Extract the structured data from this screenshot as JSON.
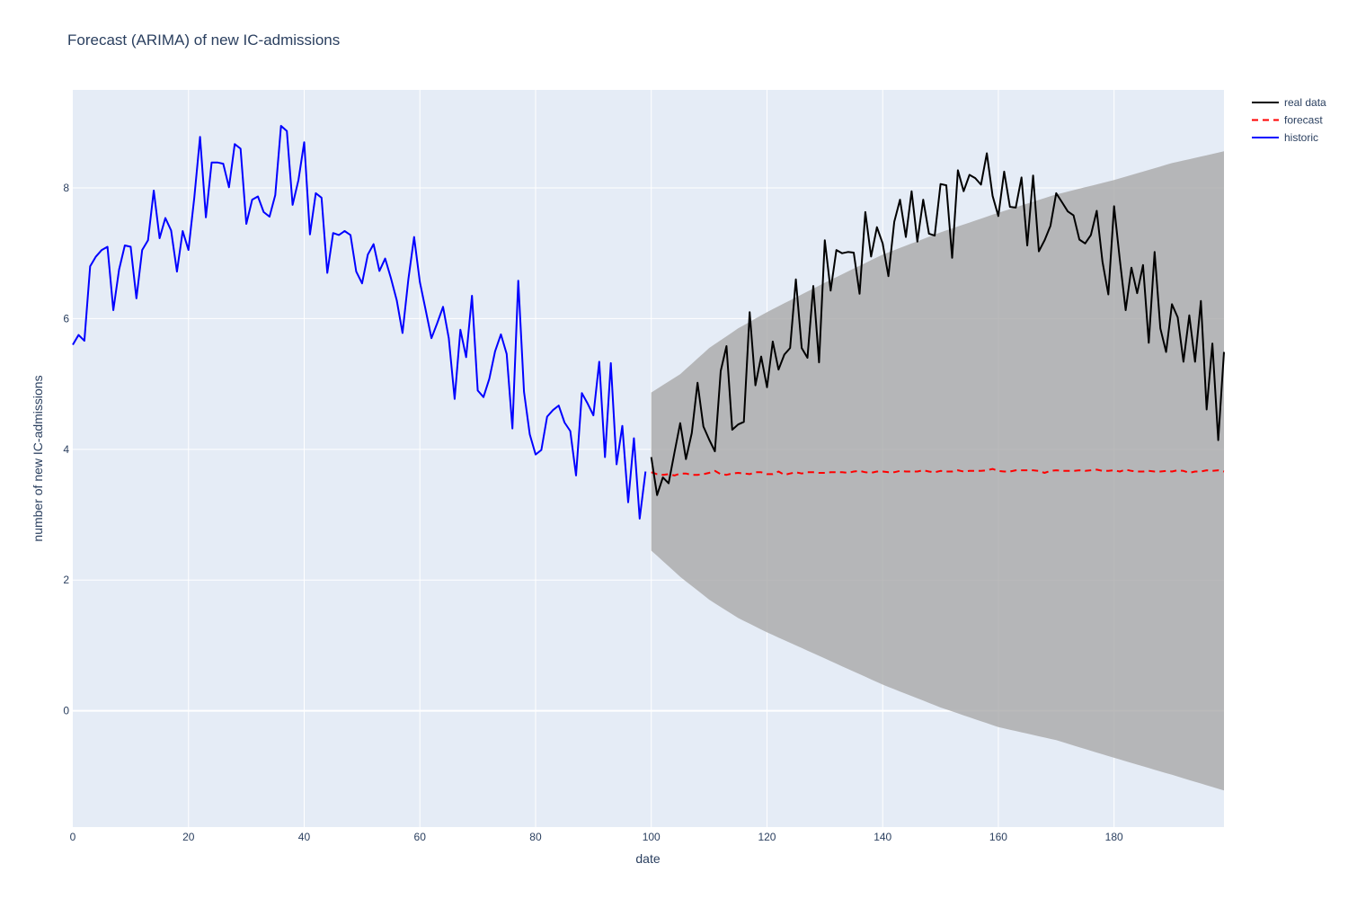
{
  "chart_data": {
    "type": "line",
    "title": "Forecast (ARIMA) of new IC-admissions",
    "xlabel": "date",
    "ylabel": "number of new IC-admissions",
    "xlim": [
      0,
      199
    ],
    "ylim": [
      -1.78,
      9.5
    ],
    "x_ticks": [
      0,
      20,
      40,
      60,
      80,
      100,
      120,
      140,
      160,
      180
    ],
    "y_ticks": [
      0,
      2,
      4,
      6,
      8
    ],
    "grid": true,
    "legend_position": "top-right",
    "colors": {
      "plot_bg": "#e5ecf6",
      "grid": "#ffffff",
      "historic": "#0000ff",
      "real": "#000000",
      "forecast": "#ff0000",
      "band": "#a9a9a9"
    },
    "series": [
      {
        "name": "real data",
        "style": "solid",
        "color": "#000000",
        "x_start": 100,
        "values": [
          3.88,
          3.3,
          3.57,
          3.48,
          3.95,
          4.4,
          3.85,
          4.25,
          5.02,
          4.35,
          4.15,
          3.97,
          5.2,
          5.58,
          4.3,
          4.38,
          4.42,
          6.1,
          4.98,
          5.42,
          4.95,
          5.65,
          5.22,
          5.45,
          5.55,
          6.6,
          5.55,
          5.4,
          6.5,
          5.33,
          7.2,
          6.43,
          7.05,
          7.0,
          7.02,
          7.01,
          6.38,
          7.63,
          6.95,
          7.4,
          7.15,
          6.65,
          7.48,
          7.82,
          7.25,
          7.95,
          7.18,
          7.82,
          7.3,
          7.27,
          8.06,
          8.04,
          6.93,
          8.27,
          7.95,
          8.2,
          8.15,
          8.05,
          8.53,
          7.88,
          7.57,
          8.25,
          7.71,
          7.7,
          8.16,
          7.12,
          8.19,
          7.03,
          7.2,
          7.42,
          7.92,
          7.78,
          7.64,
          7.58,
          7.21,
          7.15,
          7.28,
          7.65,
          6.87,
          6.37,
          7.72,
          6.9,
          6.13,
          6.78,
          6.39,
          6.82,
          5.63,
          7.02,
          5.85,
          5.49,
          6.22,
          6.02,
          5.34,
          6.05,
          5.34,
          6.27,
          4.61,
          5.62,
          4.14,
          5.49
        ]
      },
      {
        "name": "forecast",
        "style": "dashed",
        "color": "#ff0000",
        "x_start": 100,
        "values": [
          3.65,
          3.62,
          3.61,
          3.62,
          3.6,
          3.63,
          3.63,
          3.61,
          3.61,
          3.62,
          3.64,
          3.67,
          3.62,
          3.61,
          3.63,
          3.64,
          3.63,
          3.62,
          3.65,
          3.65,
          3.62,
          3.62,
          3.66,
          3.61,
          3.63,
          3.65,
          3.63,
          3.65,
          3.65,
          3.64,
          3.64,
          3.65,
          3.65,
          3.65,
          3.64,
          3.66,
          3.67,
          3.65,
          3.64,
          3.66,
          3.66,
          3.65,
          3.65,
          3.67,
          3.66,
          3.66,
          3.66,
          3.68,
          3.66,
          3.65,
          3.67,
          3.66,
          3.66,
          3.68,
          3.66,
          3.67,
          3.67,
          3.67,
          3.68,
          3.7,
          3.67,
          3.66,
          3.66,
          3.68,
          3.68,
          3.68,
          3.68,
          3.67,
          3.64,
          3.67,
          3.68,
          3.67,
          3.67,
          3.67,
          3.68,
          3.67,
          3.68,
          3.69,
          3.67,
          3.67,
          3.68,
          3.66,
          3.69,
          3.67,
          3.66,
          3.66,
          3.67,
          3.66,
          3.66,
          3.67,
          3.66,
          3.68,
          3.67,
          3.64,
          3.66,
          3.66,
          3.68,
          3.67,
          3.68,
          3.66
        ]
      },
      {
        "name": "historic",
        "style": "solid",
        "color": "#0000ff",
        "x_start": 0,
        "values": [
          5.6,
          5.75,
          5.66,
          6.8,
          6.95,
          7.05,
          7.1,
          6.13,
          6.75,
          7.12,
          7.1,
          6.31,
          7.05,
          7.2,
          7.96,
          7.23,
          7.54,
          7.35,
          6.72,
          7.34,
          7.05,
          7.85,
          8.78,
          7.55,
          8.39,
          8.39,
          8.37,
          8.01,
          8.67,
          8.6,
          7.45,
          7.82,
          7.87,
          7.63,
          7.56,
          7.89,
          8.95,
          8.87,
          7.74,
          8.12,
          8.7,
          7.29,
          7.92,
          7.85,
          6.7,
          7.31,
          7.28,
          7.34,
          7.28,
          6.72,
          6.54,
          6.98,
          7.14,
          6.73,
          6.92,
          6.62,
          6.28,
          5.78,
          6.6,
          7.25,
          6.56,
          6.13,
          5.7,
          5.93,
          6.18,
          5.7,
          4.77,
          5.83,
          5.41,
          6.35,
          4.9,
          4.8,
          5.08,
          5.5,
          5.76,
          5.46,
          4.32,
          6.58,
          4.88,
          4.23,
          3.92,
          3.99,
          4.5,
          4.6,
          4.67,
          4.41,
          4.28,
          3.6,
          4.86,
          4.7,
          4.52,
          5.34,
          3.88,
          5.32,
          3.77,
          4.36,
          3.19,
          4.17,
          2.94,
          3.66
        ]
      }
    ],
    "confidence_band": {
      "x_start": 100,
      "upper_knots": [
        [
          100,
          4.87
        ],
        [
          105,
          5.15
        ],
        [
          110,
          5.55
        ],
        [
          115,
          5.85
        ],
        [
          120,
          6.1
        ],
        [
          130,
          6.55
        ],
        [
          140,
          6.98
        ],
        [
          150,
          7.32
        ],
        [
          160,
          7.62
        ],
        [
          170,
          7.9
        ],
        [
          180,
          8.12
        ],
        [
          190,
          8.38
        ],
        [
          199,
          8.56
        ]
      ],
      "lower_knots": [
        [
          100,
          2.45
        ],
        [
          105,
          2.05
        ],
        [
          110,
          1.7
        ],
        [
          115,
          1.42
        ],
        [
          120,
          1.2
        ],
        [
          130,
          0.8
        ],
        [
          140,
          0.4
        ],
        [
          150,
          0.05
        ],
        [
          160,
          -0.25
        ],
        [
          170,
          -0.45
        ],
        [
          180,
          -0.72
        ],
        [
          190,
          -0.98
        ],
        [
          199,
          -1.22
        ]
      ]
    }
  }
}
